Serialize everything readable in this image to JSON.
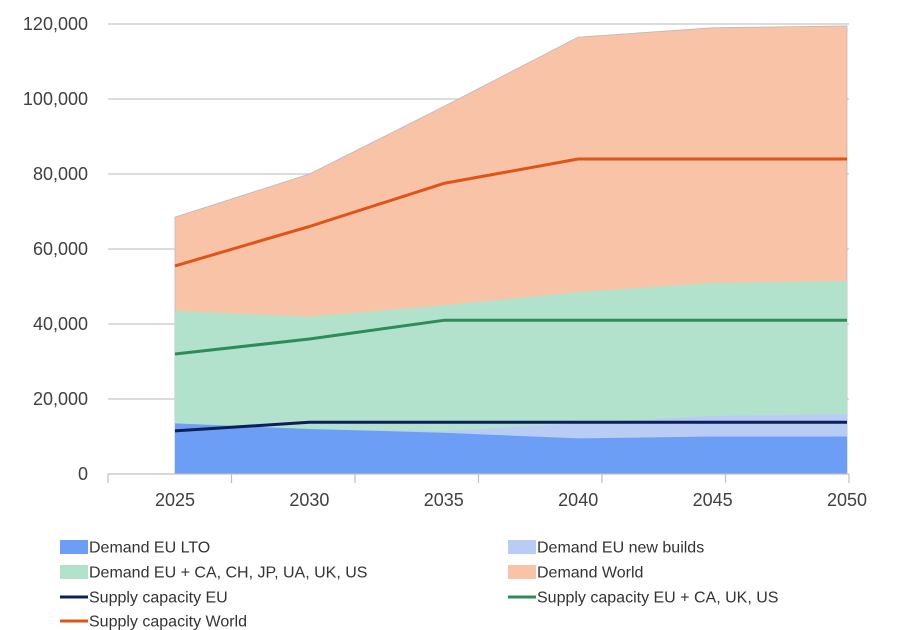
{
  "chart_data": {
    "type": "area",
    "x": [
      2025,
      2030,
      2035,
      2040,
      2045,
      2050
    ],
    "ylim": [
      0,
      120000
    ],
    "yticks": [
      "0",
      "20,000",
      "40,000",
      "60,000",
      "80,000",
      "100,000",
      "120,000"
    ],
    "xticks": [
      "2025",
      "2030",
      "2035",
      "2040",
      "2045",
      "2050"
    ],
    "grid": true,
    "legend_position": "bottom",
    "stacked_areas": [
      {
        "name": "Demand EU LTO",
        "color": "#6d9ef5",
        "values": [
          13500,
          12000,
          11000,
          9500,
          10000,
          10000
        ]
      },
      {
        "name": "Demand EU new builds",
        "color": "#b9cdf4",
        "values": [
          13500,
          12000,
          11500,
          13500,
          15500,
          16000
        ]
      },
      {
        "name": "Demand EU + CA, CH, JP, UA, UK, US",
        "color": "#b2e2cc",
        "values": [
          43500,
          42000,
          45000,
          48500,
          51000,
          51500
        ]
      },
      {
        "name": "Demand World",
        "color": "#f9c3a8",
        "values": [
          68500,
          80000,
          98000,
          116500,
          119000,
          119500
        ]
      }
    ],
    "lines": [
      {
        "name": "Supply capacity EU",
        "color": "#0b1f5c",
        "values": [
          11500,
          13800,
          13800,
          13800,
          13800,
          13800
        ]
      },
      {
        "name": "Supply capacity EU + CA, UK, US",
        "color": "#2e8b5a",
        "values": [
          32000,
          36000,
          41000,
          41000,
          41000,
          41000
        ]
      },
      {
        "name": "Supply capacity World",
        "color": "#e05418",
        "values": [
          55500,
          66000,
          77500,
          84000,
          84000,
          84000
        ]
      }
    ],
    "legend": [
      {
        "label": "Demand EU LTO",
        "kind": "area",
        "color": "#6d9ef5"
      },
      {
        "label": "Demand EU new builds",
        "kind": "area",
        "color": "#b9cdf4"
      },
      {
        "label": "Demand EU + CA, CH, JP, UA, UK, US",
        "kind": "area",
        "color": "#b2e2cc"
      },
      {
        "label": "Demand World",
        "kind": "area",
        "color": "#f9c3a8"
      },
      {
        "label": "Supply capacity EU",
        "kind": "line",
        "color": "#0b1f5c"
      },
      {
        "label": "Supply capacity EU + CA, UK, US",
        "kind": "line",
        "color": "#2e8b5a"
      },
      {
        "label": "Supply capacity World",
        "kind": "line",
        "color": "#e05418"
      }
    ]
  }
}
